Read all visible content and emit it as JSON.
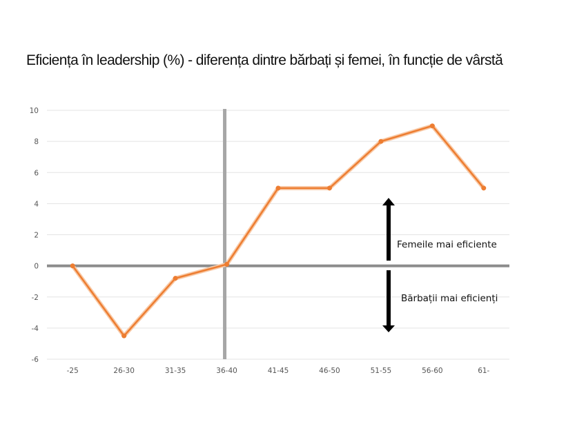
{
  "chart_data": {
    "type": "line",
    "title": "Eficiența în leadership (%) - diferența dintre bărbați și femei, în funcție de vârstă",
    "categories": [
      "-25",
      "26-30",
      "31-35",
      "36-40",
      "41-45",
      "46-50",
      "51-55",
      "56-60",
      "61-"
    ],
    "series": [
      {
        "values": [
          0,
          -4.5,
          -0.8,
          0.1,
          5,
          5,
          8,
          9,
          5
        ],
        "color": "#ed7d31"
      }
    ],
    "ylim": [
      -6,
      10
    ],
    "yticks": [
      10,
      8,
      6,
      4,
      2,
      0,
      -2,
      -4,
      -6
    ],
    "grid": true,
    "reference_vertical_at": "36-40",
    "annotations": {
      "up": "Femeile mai eficiente",
      "down": "Bărbații mai eficienți"
    }
  }
}
